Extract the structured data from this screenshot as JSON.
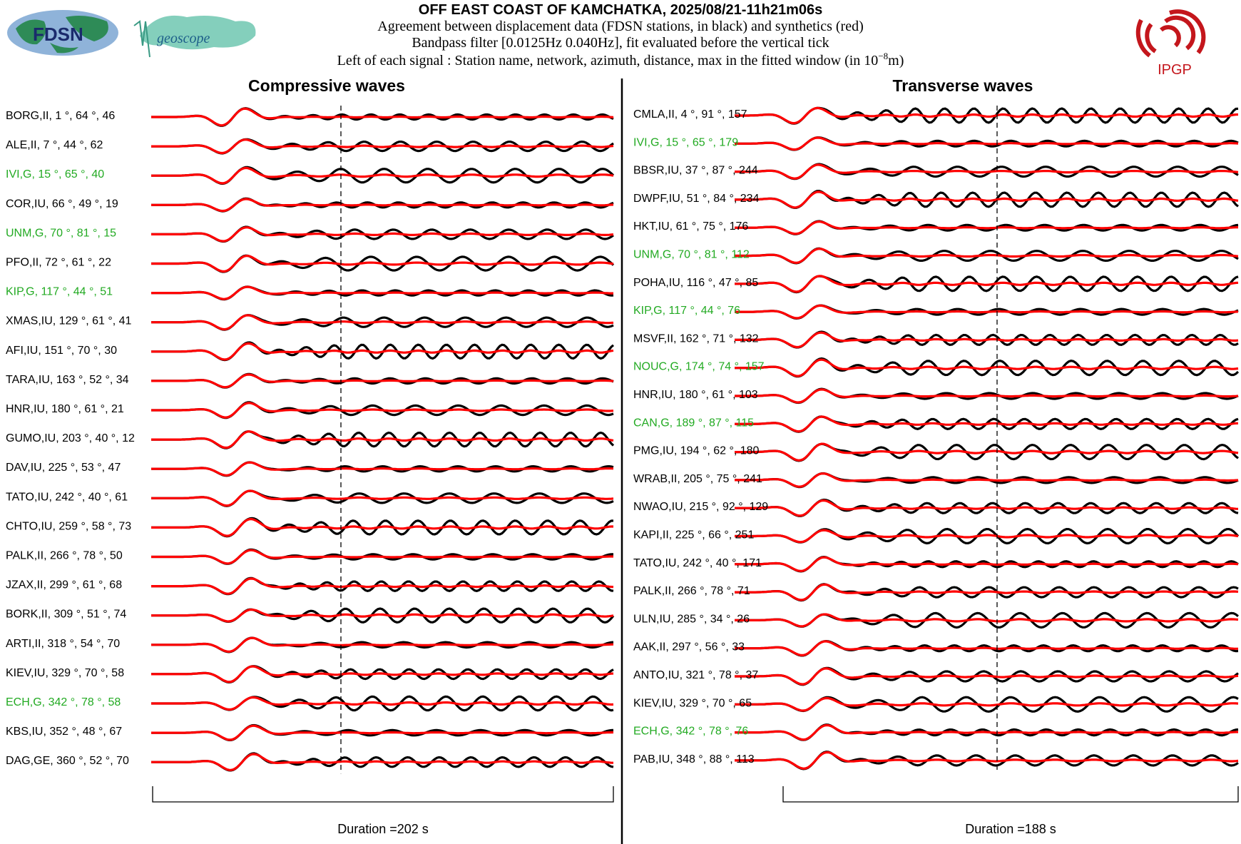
{
  "header": {
    "title": "OFF EAST COAST OF KAMCHATKA, 2025/08/21-11h21m06s",
    "line1": "Agreement between displacement data (FDSN stations, in black) and synthetics (red)",
    "line2": "Bandpass filter [0.0125Hz 0.040Hz], fit evaluated before the vertical tick",
    "line3_prefix": "Left of each signal : Station name, network, azimuth, distance, max in the fitted window (in 10",
    "line3_exp": "−8",
    "line3_suffix": "m)"
  },
  "logos": {
    "fdsn": "FDSN",
    "geoscope": "geoscope",
    "ipgp": "IPGP"
  },
  "colors": {
    "data": "#000000",
    "synthetic": "#ff0000",
    "green_label": "#22aa22",
    "label": "#000000",
    "ipgp": "#c4161c",
    "fdsn_land": "#2e8b57",
    "fdsn_sea": "#8fb3d9",
    "geoscope": "#6fc7b0"
  },
  "chart_data": [
    {
      "type": "line",
      "title": "Compressive waves",
      "duration_label": "Duration =202 s",
      "series": [
        {
          "name": "data",
          "color": "#000000"
        },
        {
          "name": "synthetics",
          "color": "#ff0000"
        }
      ],
      "stations": [
        {
          "label": "BORG,II, 1 °, 64 °, 46",
          "green": false
        },
        {
          "label": "ALE,II, 7 °, 44 °, 62",
          "green": false
        },
        {
          "label": "IVI,G, 15 °, 65 °, 40",
          "green": true
        },
        {
          "label": "COR,IU, 66 °, 49 °, 19",
          "green": false
        },
        {
          "label": "UNM,G, 70 °, 81 °, 15",
          "green": true
        },
        {
          "label": "PFO,II, 72 °, 61 °, 22",
          "green": false
        },
        {
          "label": "KIP,G, 117 °, 44 °, 51",
          "green": true
        },
        {
          "label": "XMAS,IU, 129 °, 61 °, 41",
          "green": false
        },
        {
          "label": "AFI,IU, 151 °, 70 °, 30",
          "green": false
        },
        {
          "label": "TARA,IU, 163 °, 52 °, 34",
          "green": false
        },
        {
          "label": "HNR,IU, 180 °, 61 °, 21",
          "green": false
        },
        {
          "label": "GUMO,IU, 203 °, 40 °, 12",
          "green": false
        },
        {
          "label": "DAV,IU, 225 °, 53 °, 47",
          "green": false
        },
        {
          "label": "TATO,IU, 242 °, 40 °, 61",
          "green": false
        },
        {
          "label": "CHTO,IU, 259 °, 58 °, 73",
          "green": false
        },
        {
          "label": "PALK,II, 266 °, 78 °, 50",
          "green": false
        },
        {
          "label": "JZAX,II, 299 °, 61 °, 68",
          "green": false
        },
        {
          "label": "BORK,II, 309 °, 51 °, 74",
          "green": false
        },
        {
          "label": "ARTI,II, 318 °, 54 °, 70",
          "green": false
        },
        {
          "label": "KIEV,IU, 329 °, 70 °, 58",
          "green": false
        },
        {
          "label": "ECH,G, 342 °, 78 °, 58",
          "green": true
        },
        {
          "label": "KBS,IU, 352 °, 48 °, 67",
          "green": false
        },
        {
          "label": "DAG,GE, 360 °, 52 °, 70",
          "green": false
        }
      ]
    },
    {
      "type": "line",
      "title": "Transverse waves",
      "duration_label": "Duration =188 s",
      "series": [
        {
          "name": "data",
          "color": "#000000"
        },
        {
          "name": "synthetics",
          "color": "#ff0000"
        }
      ],
      "stations": [
        {
          "label": "CMLA,II, 4 °, 91 °, 157",
          "green": false
        },
        {
          "label": "IVI,G, 15 °, 65 °, 179",
          "green": true
        },
        {
          "label": "BBSR,IU, 37 °, 87 °, 244",
          "green": false
        },
        {
          "label": "DWPF,IU, 51 °, 84 °, 234",
          "green": false
        },
        {
          "label": "HKT,IU, 61 °, 75 °, 176",
          "green": false
        },
        {
          "label": "UNM,G, 70 °, 81 °, 112",
          "green": true
        },
        {
          "label": "POHA,IU, 116 °, 47 °, 85",
          "green": false
        },
        {
          "label": "KIP,G, 117 °, 44 °, 76",
          "green": true
        },
        {
          "label": "MSVF,II, 162 °, 71 °, 132",
          "green": false
        },
        {
          "label": "NOUC,G, 174 °, 74 °, 157",
          "green": true
        },
        {
          "label": "HNR,IU, 180 °, 61 °, 103",
          "green": false
        },
        {
          "label": "CAN,G, 189 °, 87 °, 115",
          "green": true
        },
        {
          "label": "PMG,IU, 194 °, 62 °, 180",
          "green": false
        },
        {
          "label": "WRAB,II, 205 °, 75 °, 241",
          "green": false
        },
        {
          "label": "NWAO,IU, 215 °, 92 °, 129",
          "green": false
        },
        {
          "label": "KAPI,II, 225 °, 66 °, 251",
          "green": false
        },
        {
          "label": "TATO,IU, 242 °, 40 °, 171",
          "green": false
        },
        {
          "label": "PALK,II, 266 °, 78 °, 71",
          "green": false
        },
        {
          "label": "ULN,IU, 285 °, 34 °, 26",
          "green": false
        },
        {
          "label": "AAK,II, 297 °, 56 °, 33",
          "green": false
        },
        {
          "label": "ANTO,IU, 321 °, 78 °, 37",
          "green": false
        },
        {
          "label": "KIEV,IU, 329 °, 70 °, 65",
          "green": false
        },
        {
          "label": "ECH,G, 342 °, 78 °, 76",
          "green": true
        },
        {
          "label": "PAB,IU, 348 °, 88 °, 113",
          "green": false
        }
      ]
    }
  ]
}
